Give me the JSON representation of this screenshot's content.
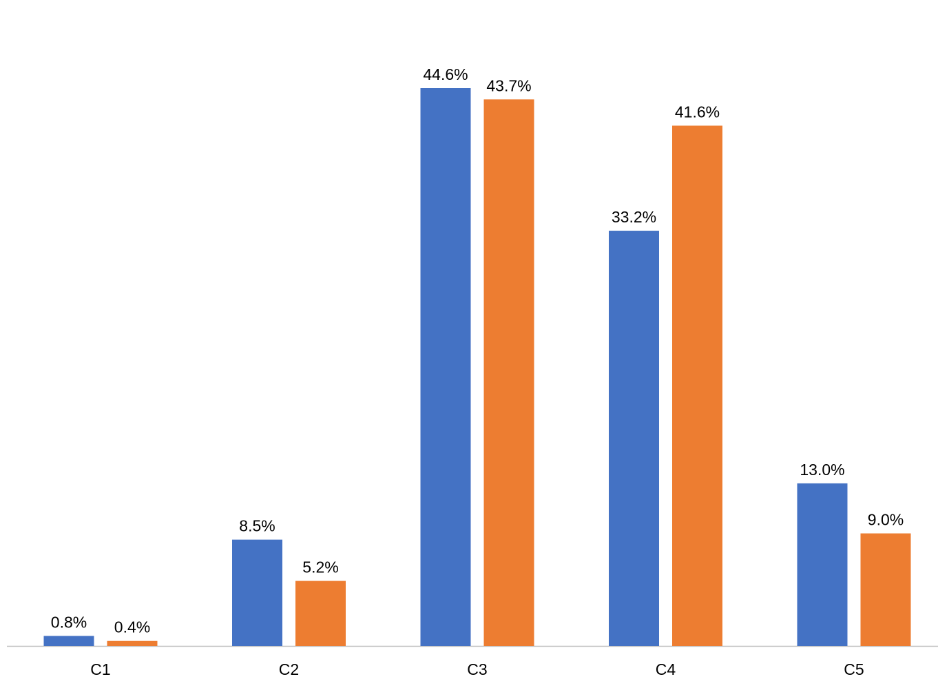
{
  "chart_data": {
    "type": "bar",
    "categories": [
      "C1",
      "C2",
      "C3",
      "C4",
      "C5"
    ],
    "series": [
      {
        "color": "#4472c4",
        "values": [
          0.8,
          8.5,
          44.6,
          33.2,
          13.0
        ],
        "value_labels": [
          "0.8%",
          "8.5%",
          "44.6%",
          "33.2%",
          "13.0%"
        ]
      },
      {
        "color": "#ed7d31",
        "values": [
          0.4,
          5.2,
          43.7,
          41.6,
          9.0
        ],
        "value_labels": [
          "0.4%",
          "5.2%",
          "43.7%",
          "41.6%",
          "9.0%"
        ]
      }
    ]
  }
}
